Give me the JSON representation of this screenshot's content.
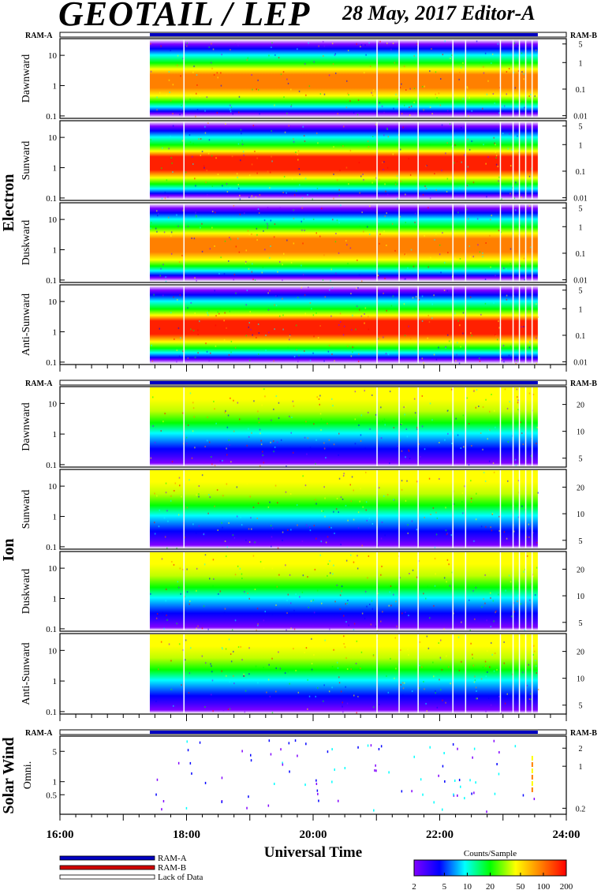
{
  "header": {
    "title": "GEOTAIL / LEP",
    "date_editor": "28 May, 2017   Editor-A"
  },
  "chart_data": {
    "type": "heatmap",
    "x_axis": {
      "label": "Universal Time",
      "range_hours": [
        16,
        24
      ],
      "tick_labels": [
        "16:00",
        "18:00",
        "20:00",
        "22:00",
        "24:00"
      ],
      "tick_hours": [
        16,
        18,
        20,
        22,
        24
      ]
    },
    "data_coverage": {
      "start_hour": 17.42,
      "end_hour": 23.55
    },
    "ram_labels": {
      "left": "RAM-A",
      "right": "RAM-B"
    },
    "groups": [
      {
        "name": "Electron",
        "panels": [
          {
            "label": "Dawnward",
            "y_ticks": [
              "10",
              "1",
              "0.1"
            ],
            "y_tick_values": [
              10,
              1,
              0.1
            ],
            "right_ticks": [
              "5",
              "1",
              "0.1",
              "0.01"
            ],
            "right_tick_values": [
              5,
              1,
              0.1,
              0.01
            ]
          },
          {
            "label": "Sunward",
            "y_ticks": [
              "10",
              "1",
              "0.1"
            ],
            "y_tick_values": [
              10,
              1,
              0.1
            ],
            "right_ticks": [
              "5",
              "1",
              "0.1",
              "0.01"
            ],
            "right_tick_values": [
              5,
              1,
              0.1,
              0.01
            ]
          },
          {
            "label": "Duskward",
            "y_ticks": [
              "10",
              "1",
              "0.1"
            ],
            "y_tick_values": [
              10,
              1,
              0.1
            ],
            "right_ticks": [
              "5",
              "1",
              "0.1",
              "0.01"
            ],
            "right_tick_values": [
              5,
              1,
              0.1,
              0.01
            ]
          },
          {
            "label": "Anti-Sunward",
            "y_ticks": [
              "10",
              "1",
              "0.1"
            ],
            "y_tick_values": [
              10,
              1,
              0.1
            ],
            "right_ticks": [
              "5",
              "1",
              "0.1",
              "0.01"
            ],
            "right_tick_values": [
              5,
              1,
              0.1,
              0.01
            ]
          }
        ]
      },
      {
        "name": "Ion",
        "panels": [
          {
            "label": "Dawnward",
            "y_ticks": [
              "10",
              "1",
              "0.1"
            ],
            "y_tick_values": [
              10,
              1,
              0.1
            ],
            "right_ticks": [
              "20",
              "10",
              "5"
            ],
            "right_tick_values": [
              20,
              10,
              5
            ]
          },
          {
            "label": "Sunward",
            "y_ticks": [
              "10",
              "1",
              "0.1"
            ],
            "y_tick_values": [
              10,
              1,
              0.1
            ],
            "right_ticks": [
              "20",
              "10",
              "5"
            ],
            "right_tick_values": [
              20,
              10,
              5
            ]
          },
          {
            "label": "Duskward",
            "y_ticks": [
              "10",
              "1",
              "0.1"
            ],
            "y_tick_values": [
              10,
              1,
              0.1
            ],
            "right_ticks": [
              "20",
              "10",
              "5"
            ],
            "right_tick_values": [
              20,
              10,
              5
            ]
          },
          {
            "label": "Anti-Sunward",
            "y_ticks": [
              "10",
              "1",
              "0.1"
            ],
            "y_tick_values": [
              10,
              1,
              0.1
            ],
            "right_ticks": [
              "20",
              "10",
              "5"
            ],
            "right_tick_values": [
              20,
              10,
              5
            ]
          }
        ]
      },
      {
        "name": "Solar Wind",
        "panels": [
          {
            "label": "Omni.",
            "y_ticks": [
              "5",
              "1",
              "0.5"
            ],
            "y_tick_values": [
              5,
              1,
              0.5
            ],
            "right_ticks": [
              "2",
              "1",
              "0.2"
            ],
            "right_tick_values": [
              2,
              1,
              0.2
            ]
          }
        ]
      }
    ],
    "legend": {
      "items": [
        "RAM-A",
        "RAM-B",
        "Lack of Data"
      ],
      "colors": [
        "#0000c0",
        "#d00000",
        "#ffffff"
      ]
    },
    "colorbar": {
      "title": "Counts/Sample",
      "tick_labels": [
        "2",
        "5",
        "10",
        "20",
        "50",
        "100",
        "200"
      ],
      "tick_values": [
        2,
        5,
        10,
        20,
        50,
        100,
        200
      ],
      "range": [
        2,
        200
      ],
      "scale": "log",
      "colors": [
        "#8000ff",
        "#0000ff",
        "#00ffff",
        "#00ff00",
        "#ffff00",
        "#ff8000",
        "#ff0000"
      ]
    }
  }
}
